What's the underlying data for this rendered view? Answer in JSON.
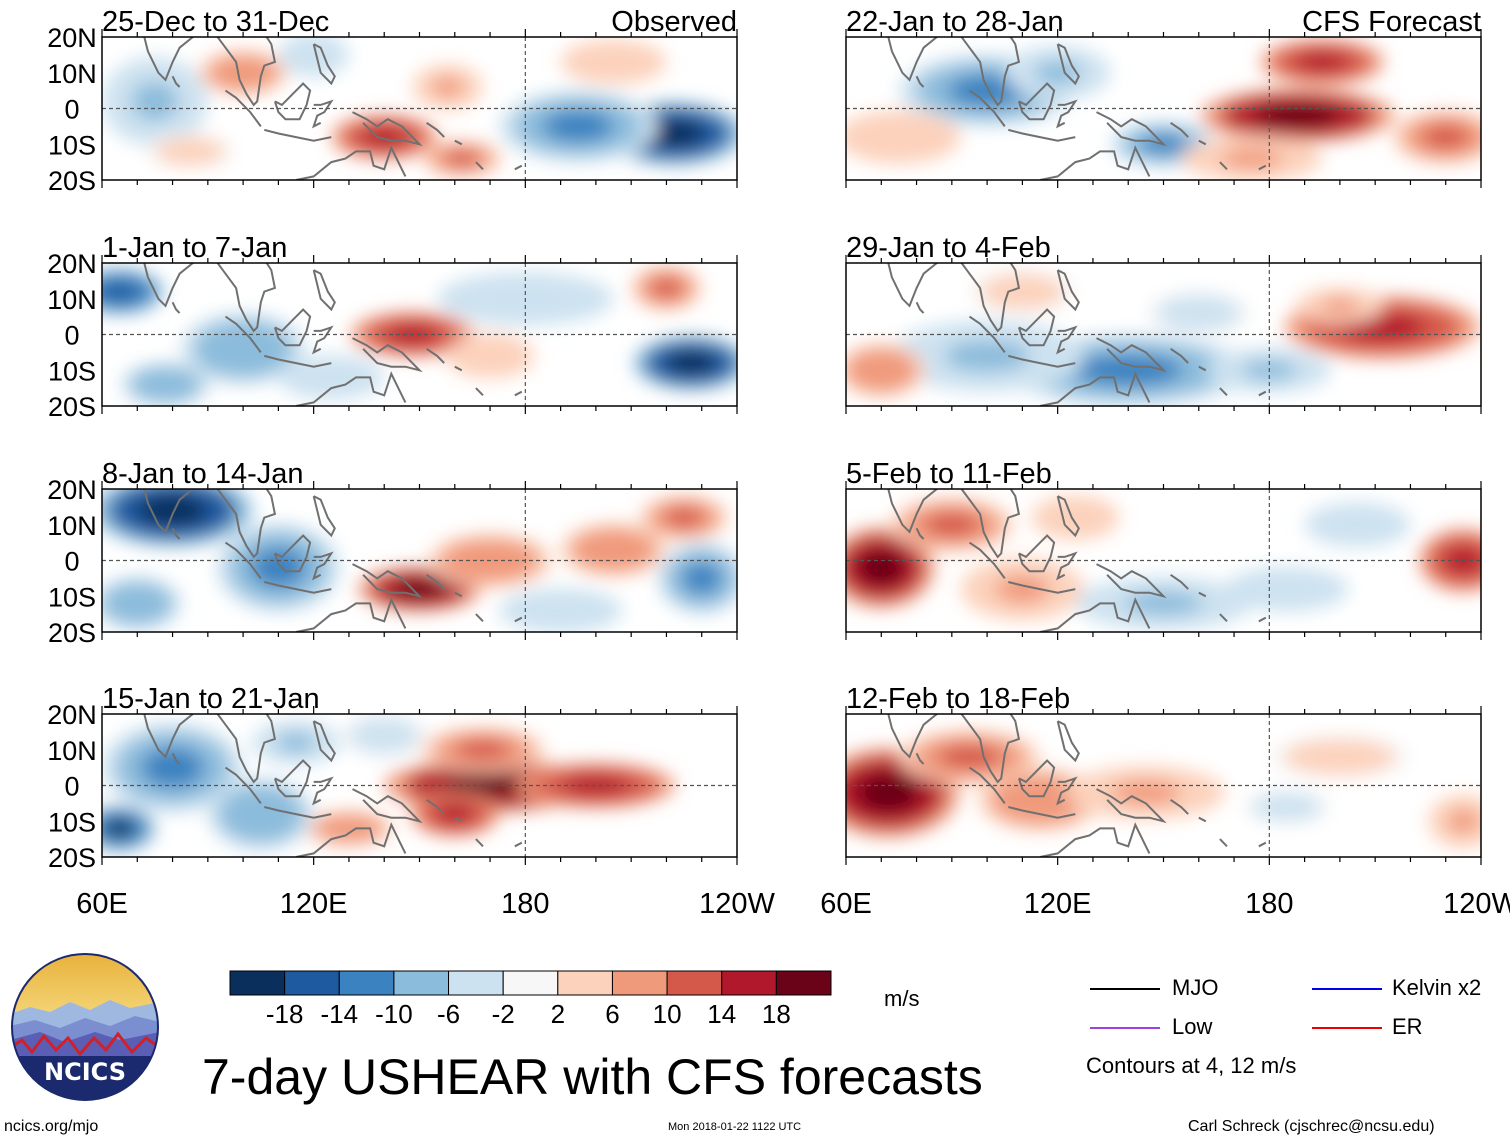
{
  "chart_data": {
    "type": "heatmap",
    "title": "7-day USHEAR with CFS forecasts",
    "variable": "USHEAR anomaly",
    "units": "m/s",
    "x_ticks": [
      "60E",
      "120E",
      "180",
      "120W"
    ],
    "x_range": [
      60,
      240
    ],
    "y_ticks": [
      "20N",
      "10N",
      "0",
      "10S",
      "20S"
    ],
    "y_range": [
      -20,
      20
    ],
    "source_labels": {
      "observed": "Observed",
      "forecast": "CFS Forecast"
    },
    "colorbar": {
      "labels": [
        "-18",
        "-14",
        "-10",
        "-6",
        "-2",
        "2",
        "6",
        "10",
        "14",
        "18"
      ],
      "colors": [
        "#0b2f5c",
        "#1d5aa0",
        "#3b82c0",
        "#8cbcdc",
        "#cde2f0",
        "#f7f7f7",
        "#fcd2bc",
        "#f09a7c",
        "#d5594b",
        "#b2182b",
        "#6a0218"
      ]
    },
    "contour_legend": [
      {
        "name": "MJO",
        "color": "#000000"
      },
      {
        "name": "Kelvin x2",
        "color": "#0000ee"
      },
      {
        "name": "Low",
        "color": "#a040e0"
      },
      {
        "name": "ER",
        "color": "#ee0000"
      }
    ],
    "contours_note": "Contours at 4, 12 m/s",
    "panels": [
      {
        "period": "25-Dec to 31-Dec",
        "source": "observed",
        "column": 0,
        "row": 0,
        "blobs": [
          [
            100,
            10,
            10,
            5,
            0.45
          ],
          [
            140,
            -8,
            12,
            5,
            0.75
          ],
          [
            162,
            -14,
            9,
            4,
            0.65
          ],
          [
            158,
            6,
            8,
            5,
            0.3
          ],
          [
            222,
            -7,
            16,
            7,
            -0.95
          ],
          [
            75,
            2,
            12,
            10,
            -0.35
          ],
          [
            195,
            -5,
            18,
            8,
            -0.6
          ],
          [
            120,
            15,
            8,
            5,
            -0.3
          ],
          [
            205,
            13,
            12,
            5,
            0.25
          ],
          [
            85,
            -12,
            10,
            4,
            0.2
          ]
        ]
      },
      {
        "period": "1-Jan to 7-Jan",
        "source": "observed",
        "column": 0,
        "row": 1,
        "blobs": [
          [
            65,
            12,
            10,
            5,
            -0.75
          ],
          [
            148,
            0,
            14,
            5,
            0.7
          ],
          [
            227,
            -8,
            13,
            6,
            -1.0
          ],
          [
            220,
            13,
            8,
            5,
            0.55
          ],
          [
            100,
            -4,
            14,
            8,
            -0.45
          ],
          [
            78,
            -14,
            10,
            5,
            -0.45
          ],
          [
            180,
            10,
            20,
            6,
            -0.25
          ],
          [
            125,
            -12,
            12,
            5,
            -0.3
          ],
          [
            170,
            -6,
            10,
            5,
            0.25
          ]
        ]
      },
      {
        "period": "8-Jan to 14-Jan",
        "source": "observed",
        "column": 0,
        "row": 2,
        "blobs": [
          [
            80,
            14,
            18,
            8,
            -1.0
          ],
          [
            150,
            -8,
            14,
            5,
            0.95
          ],
          [
            225,
            12,
            10,
            5,
            0.6
          ],
          [
            170,
            0,
            14,
            6,
            0.45
          ],
          [
            205,
            3,
            12,
            6,
            0.4
          ],
          [
            230,
            -5,
            10,
            8,
            -0.55
          ],
          [
            110,
            -2,
            14,
            10,
            -0.55
          ],
          [
            70,
            -12,
            10,
            6,
            -0.5
          ],
          [
            190,
            -14,
            14,
            5,
            -0.3
          ]
        ]
      },
      {
        "period": "15-Jan to 21-Jan",
        "source": "observed",
        "column": 0,
        "row": 3,
        "blobs": [
          [
            170,
            0,
            24,
            6,
            0.95
          ],
          [
            200,
            0,
            18,
            5,
            0.85
          ],
          [
            160,
            -8,
            10,
            5,
            0.7
          ],
          [
            168,
            10,
            14,
            5,
            0.5
          ],
          [
            130,
            -12,
            10,
            4,
            0.45
          ],
          [
            65,
            -12,
            8,
            5,
            -0.9
          ],
          [
            80,
            5,
            16,
            10,
            -0.55
          ],
          [
            105,
            -8,
            12,
            8,
            -0.45
          ],
          [
            115,
            12,
            10,
            5,
            -0.35
          ],
          [
            140,
            14,
            10,
            5,
            -0.2
          ]
        ]
      },
      {
        "period": "22-Jan to 28-Jan",
        "source": "forecast",
        "column": 1,
        "row": 0,
        "blobs": [
          [
            188,
            -2,
            22,
            6,
            1.0
          ],
          [
            195,
            13,
            14,
            5,
            0.7
          ],
          [
            230,
            -8,
            12,
            6,
            0.6
          ],
          [
            100,
            5,
            20,
            8,
            -0.55
          ],
          [
            150,
            -10,
            12,
            5,
            -0.55
          ],
          [
            120,
            10,
            12,
            6,
            -0.35
          ],
          [
            175,
            -14,
            16,
            5,
            0.3
          ],
          [
            75,
            -8,
            14,
            6,
            0.25
          ]
        ]
      },
      {
        "period": "29-Jan to 4-Feb",
        "source": "forecast",
        "column": 1,
        "row": 1,
        "blobs": [
          [
            212,
            2,
            22,
            7,
            0.7
          ],
          [
            200,
            8,
            10,
            4,
            0.35
          ],
          [
            140,
            -10,
            28,
            8,
            -0.55
          ],
          [
            100,
            -6,
            22,
            8,
            -0.4
          ],
          [
            180,
            -10,
            14,
            5,
            -0.35
          ],
          [
            70,
            -10,
            10,
            6,
            0.45
          ],
          [
            110,
            12,
            12,
            5,
            0.2
          ],
          [
            160,
            6,
            12,
            5,
            -0.2
          ]
        ]
      },
      {
        "period": "5-Feb to 11-Feb",
        "source": "forecast",
        "column": 1,
        "row": 2,
        "blobs": [
          [
            70,
            -2,
            12,
            9,
            0.95
          ],
          [
            90,
            10,
            14,
            6,
            0.5
          ],
          [
            110,
            -8,
            14,
            7,
            0.35
          ],
          [
            235,
            0,
            10,
            7,
            0.75
          ],
          [
            150,
            -12,
            20,
            6,
            -0.35
          ],
          [
            205,
            10,
            12,
            5,
            -0.3
          ],
          [
            185,
            -8,
            14,
            5,
            -0.3
          ],
          [
            125,
            12,
            10,
            5,
            0.25
          ]
        ]
      },
      {
        "period": "12-Feb to 18-Feb",
        "source": "forecast",
        "column": 1,
        "row": 3,
        "blobs": [
          [
            72,
            -2,
            16,
            10,
            1.0
          ],
          [
            95,
            8,
            16,
            6,
            0.65
          ],
          [
            115,
            -4,
            14,
            7,
            0.45
          ],
          [
            145,
            -2,
            18,
            6,
            0.35
          ],
          [
            200,
            8,
            16,
            5,
            0.2
          ],
          [
            185,
            -6,
            10,
            4,
            -0.2
          ],
          [
            235,
            -10,
            8,
            6,
            0.35
          ]
        ]
      }
    ]
  },
  "footer": {
    "site": "ncics.org/mjo",
    "timestamp": "Mon 2018-01-22 1122 UTC",
    "author": "Carl Schreck (cjschrec@ncsu.edu)",
    "logo_text": "NCICS"
  }
}
